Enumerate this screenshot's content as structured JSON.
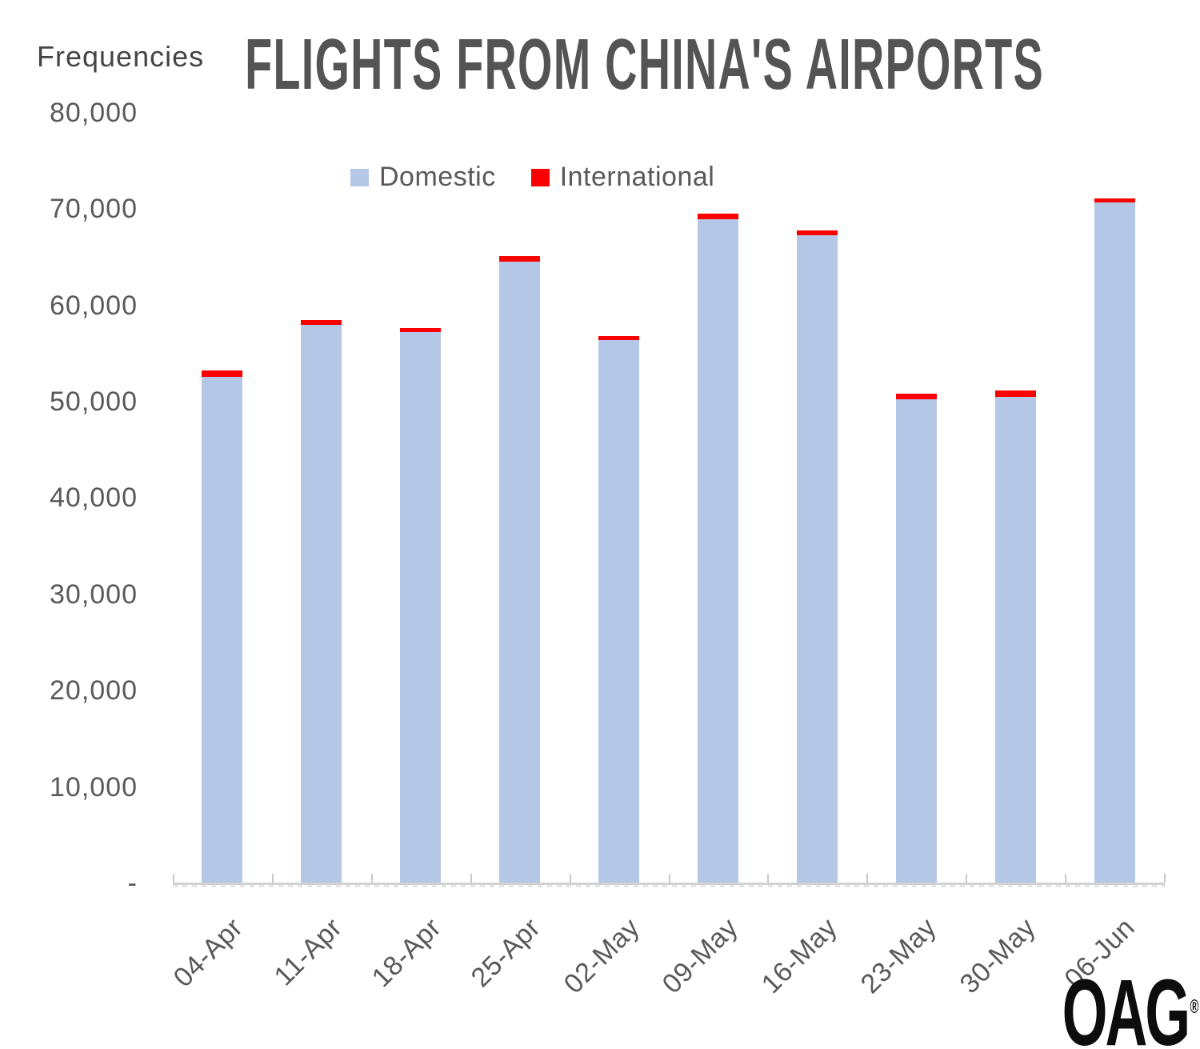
{
  "header": {
    "title": "FLIGHTS FROM CHINA'S AIRPORTS",
    "y_axis_title": "Frequencies"
  },
  "footer": {
    "logo_text": "OAG",
    "logo_mark": "®"
  },
  "colors": {
    "domestic": "#b4c7e7",
    "international": "#fb0000",
    "title_text": "#545454",
    "axis_text": "#595959",
    "axis_line": "#d2d2d2"
  },
  "chart_data": {
    "type": "bar",
    "stacked": true,
    "title": "FLIGHTS FROM CHINA'S AIRPORTS",
    "ylabel": "Frequencies",
    "xlabel": "",
    "grid": false,
    "legend_position": "top-center",
    "ylim": [
      0,
      80000
    ],
    "categories": [
      "04-Apr",
      "11-Apr",
      "18-Apr",
      "25-Apr",
      "02-May",
      "09-May",
      "16-May",
      "23-May",
      "30-May",
      "06-Jun"
    ],
    "series": [
      {
        "name": "Domestic",
        "color": "#b4c7e7",
        "values": [
          52600,
          58000,
          57200,
          64500,
          56400,
          68900,
          67250,
          50250,
          50500,
          70650
        ]
      },
      {
        "name": "International",
        "color": "#fb0000",
        "values": [
          600,
          450,
          450,
          600,
          450,
          650,
          500,
          600,
          700,
          450
        ]
      }
    ],
    "yticks": [
      {
        "label": "80,000",
        "value": 80000
      },
      {
        "label": "70,000",
        "value": 70000
      },
      {
        "label": "60,000",
        "value": 60000
      },
      {
        "label": "50,000",
        "value": 50000
      },
      {
        "label": "40,000",
        "value": 40000
      },
      {
        "label": "30,000",
        "value": 30000
      },
      {
        "label": "20,000",
        "value": 20000
      },
      {
        "label": "10,000",
        "value": 10000
      },
      {
        "label": "-",
        "value": 0
      }
    ]
  }
}
